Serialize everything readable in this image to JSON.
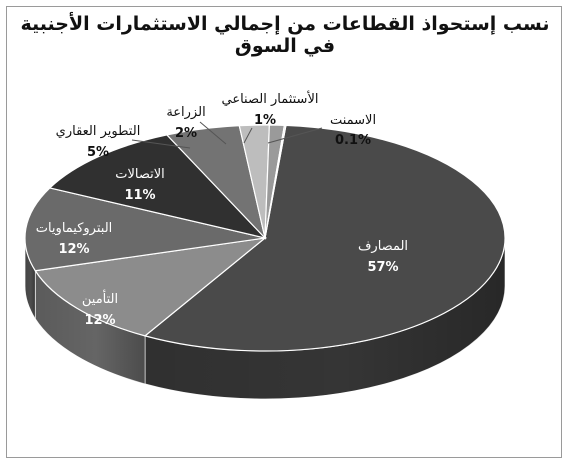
{
  "chart_data": {
    "type": "pie",
    "title": "نسب إستحواذ القطاعات من إجمالي الاستثمارات الأجنبية في السوق",
    "slices": [
      {
        "label": "المصارف",
        "value": 57,
        "value_label": "57%",
        "color": "#4a4a4a"
      },
      {
        "label": "التأمين",
        "value": 12,
        "value_label": "12%",
        "color": "#8c8c8c"
      },
      {
        "label": "البتروكيماويات",
        "value": 12,
        "value_label": "12%",
        "color": "#6a6a6a"
      },
      {
        "label": "الاتصالات",
        "value": 11,
        "value_label": "11%",
        "color": "#303030"
      },
      {
        "label": "التطوير العقاري",
        "value": 5,
        "value_label": "5%",
        "color": "#737373"
      },
      {
        "label": "الزراعة",
        "value": 2,
        "value_label": "2%",
        "color": "#bdbdbd"
      },
      {
        "label": "الأستثمار الصناعي",
        "value": 1,
        "value_label": "1%",
        "color": "#9a9a9a"
      },
      {
        "label": "الاسمنت",
        "value": 0.1,
        "value_label": "0.1%",
        "color": "#dcdcdc"
      }
    ]
  }
}
